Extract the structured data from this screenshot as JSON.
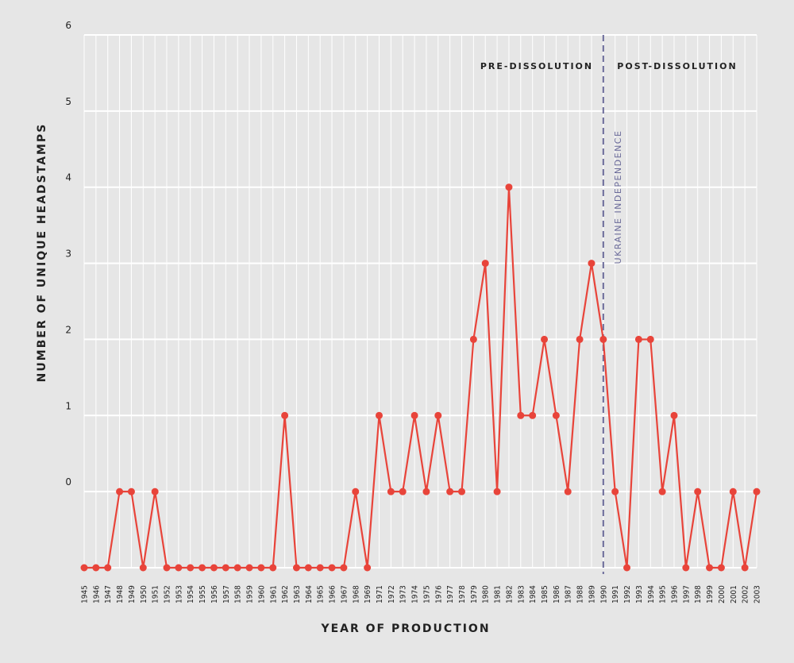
{
  "chart_data": {
    "type": "line",
    "xlabel": "YEAR OF PRODUCTION",
    "ylabel": "NUMBER OF UNIQUE HEADSTAMPS",
    "y_ticks": [
      "0",
      "1",
      "2",
      "3",
      "4",
      "5",
      "6"
    ],
    "ylim": [
      -1,
      6
    ],
    "x": [
      "1945",
      "1946",
      "1947",
      "1948",
      "1949",
      "1950",
      "1951",
      "1952",
      "1953",
      "1954",
      "1955",
      "1956",
      "1957",
      "1958",
      "1959",
      "1960",
      "1961",
      "1962",
      "1963",
      "1964",
      "1965",
      "1966",
      "1967",
      "1968",
      "1969",
      "1971",
      "1972",
      "1973",
      "1974",
      "1975",
      "1976",
      "1977",
      "1978",
      "1979",
      "1980",
      "1981",
      "1982",
      "1983",
      "1984",
      "1985",
      "1986",
      "1987",
      "1988",
      "1989",
      "1990",
      "1991",
      "1992",
      "1993",
      "1994",
      "1995",
      "1996",
      "1997",
      "1998",
      "1999",
      "2000",
      "2001",
      "2002",
      "2003"
    ],
    "series": [
      {
        "values": [
          -1,
          -1,
          -1,
          0,
          0,
          -1,
          0,
          -1,
          -1,
          -1,
          -1,
          -1,
          -1,
          -1,
          -1,
          -1,
          -1,
          1,
          -1,
          -1,
          -1,
          -1,
          -1,
          0,
          -1,
          1,
          0,
          0,
          1,
          0,
          1,
          0,
          0,
          2,
          3,
          0,
          4,
          1,
          1,
          2,
          1,
          0,
          2,
          3,
          2,
          0,
          -1,
          2,
          2,
          0,
          1,
          -1,
          0,
          -1,
          -1,
          0,
          -1,
          0
        ],
        "color": "#e8443a"
      }
    ],
    "annotations": {
      "event_label": "UKRAINE INDEPENDENCE",
      "event_year": "1990",
      "before_label": "PRE-DISSOLUTION",
      "after_label": "POST-DISSOLUTION",
      "event_line_color": "#6b6b9a"
    },
    "grid": true,
    "background": "#e6e6e6",
    "grid_color": "#ffffff"
  }
}
